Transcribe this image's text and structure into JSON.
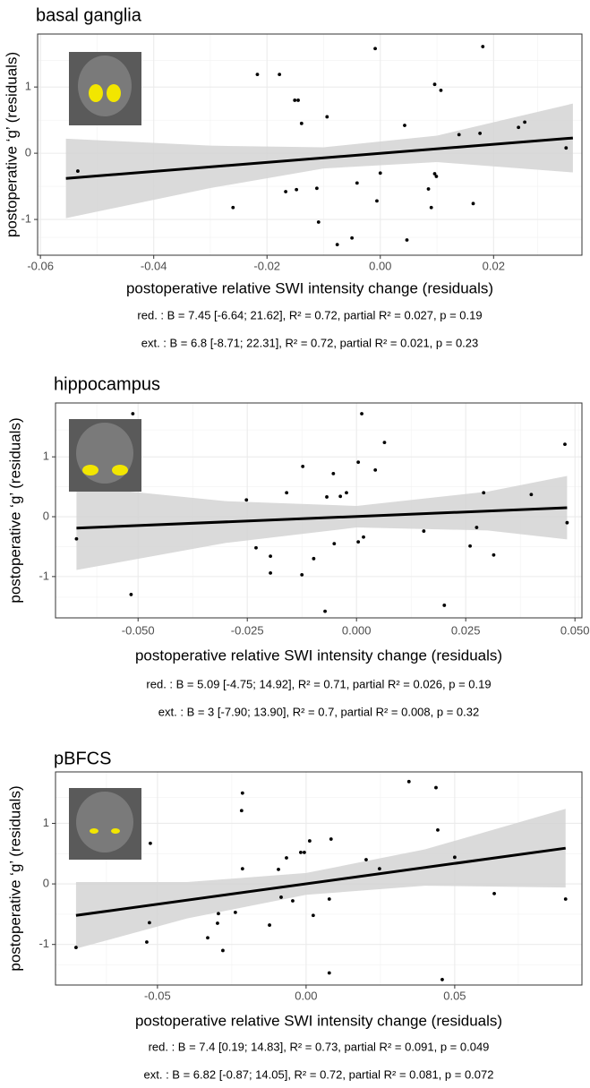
{
  "chart_data": [
    {
      "type": "scatter",
      "title": "basal ganglia",
      "x_label": "postoperative relative SWI intensity change (residuals)",
      "y_label": "postoperative ‘g’ (residuals)",
      "x": [
        -0.0534,
        -0.0217,
        -0.026,
        -0.0178,
        -0.0167,
        -0.0148,
        -0.0151,
        -0.0145,
        -0.0139,
        -0.0112,
        -0.0109,
        -0.0094,
        -0.0076,
        -0.005,
        -0.0041,
        -0.0009,
        -0.0006,
        0,
        0.0043,
        0.0047,
        0.0085,
        0.009,
        0.0096,
        0.0096,
        0.0099,
        0.0107,
        0.0139,
        0.0164,
        0.0176,
        0.0181,
        0.0244,
        0.0255,
        0.0328
      ],
      "y": [
        -0.27,
        1.19,
        -0.82,
        1.19,
        -0.58,
        -0.55,
        0.8,
        0.8,
        0.45,
        -0.53,
        -1.04,
        0.55,
        -1.38,
        -1.28,
        -0.45,
        1.58,
        -0.72,
        -0.3,
        0.42,
        -1.31,
        -0.54,
        -0.82,
        1.04,
        -0.31,
        -0.35,
        0.95,
        0.28,
        -0.76,
        0.3,
        1.61,
        0.39,
        0.47,
        0.08
      ],
      "color": "#000000",
      "fit": {
        "x": [
          -0.0555,
          0.034
        ],
        "y": [
          -0.38,
          0.23
        ],
        "color": "#000000"
      },
      "ci": {
        "x": [
          -0.0555,
          -0.03,
          -0.01,
          0.01,
          0.034
        ],
        "upper": [
          0.22,
          0.114,
          0.09,
          0.266,
          0.75
        ],
        "lower": [
          -0.98,
          -0.526,
          -0.23,
          -0.134,
          -0.29
        ],
        "color": "#d4d4d4"
      },
      "xlim": [
        -0.0605,
        0.0356
      ],
      "ylim": [
        -1.54,
        1.8
      ],
      "xticks": [
        -0.06,
        -0.04,
        -0.02,
        {
          "value": 0,
          "label": "0.00"
        },
        0.02
      ],
      "yticks": [
        -1,
        0,
        1
      ],
      "grid": true,
      "annotations": [
        "red. : B = 7.45 [-6.64; 21.62], R² = 0.72, partial R² = 0.027, p = 0.19",
        "ext. : B = 6.8 [-8.71; 22.31], R² = 0.72, partial R² = 0.021, p = 0.23"
      ]
    },
    {
      "type": "scatter",
      "title": "hippocampus",
      "x_label": "postoperative relative SWI intensity change (residuals)",
      "y_label": "postoperative ‘g’ (residuals)",
      "x": [
        -0.0641,
        -0.0512,
        -0.0516,
        -0.0252,
        -0.023,
        -0.0197,
        -0.0197,
        -0.016,
        -0.0123,
        -0.0125,
        -0.0098,
        -0.0072,
        -0.0068,
        -0.0053,
        -0.0051,
        -0.0037,
        -0.0023,
        0.0004,
        0.0004,
        0.0012,
        0.0016,
        0.0043,
        0.0064,
        0.0154,
        0.0201,
        0.026,
        0.0275,
        0.0291,
        0.0314,
        0.04,
        0.0477,
        0.0482
      ],
      "y": [
        -0.37,
        1.72,
        -1.3,
        0.28,
        -0.52,
        -0.66,
        -0.94,
        0.4,
        0.84,
        -0.97,
        -0.7,
        -1.58,
        0.33,
        0.72,
        -0.45,
        0.34,
        0.4,
        0.91,
        -0.42,
        1.72,
        -0.34,
        0.78,
        1.24,
        -0.24,
        -1.48,
        -0.49,
        -0.18,
        0.4,
        -0.64,
        0.37,
        1.21,
        -0.1
      ],
      "color": "#000000",
      "fit": {
        "x": [
          -0.0641,
          0.0482
        ],
        "y": [
          -0.19,
          0.15
        ],
        "color": "#000000"
      },
      "ci": {
        "x": [
          -0.0641,
          -0.03,
          0,
          0.03,
          0.0482
        ],
        "upper": [
          0.51,
          0.26,
          0.18,
          0.42,
          0.68
        ],
        "lower": [
          -0.89,
          -0.44,
          -0.18,
          -0.23,
          -0.38
        ],
        "color": "#d4d4d4"
      },
      "xlim": [
        -0.0689,
        0.0516
      ],
      "ylim": [
        -1.69,
        1.9
      ],
      "xticks": [
        {
          "value": -0.05,
          "label": "-0.050"
        },
        -0.025,
        {
          "value": 0,
          "label": "0.000"
        },
        0.025,
        {
          "value": 0.05,
          "label": "0.050"
        }
      ],
      "yticks": [
        -1,
        0,
        1
      ],
      "grid": true,
      "annotations": [
        "red. : B = 5.09 [-4.75; 14.92], R² = 0.71, partial R² = 0.026, p = 0.19",
        "ext. : B = 3 [-7.90; 13.90], R² = 0.7, partial R² = 0.008, p = 0.32"
      ]
    },
    {
      "type": "scatter",
      "title": "pBFCS",
      "x_label": "postoperative relative SWI intensity change (residuals)",
      "y_label": "postoperative ‘g’ (residuals)",
      "x": [
        -0.0774,
        -0.0536,
        -0.0524,
        -0.0527,
        -0.0331,
        -0.0298,
        -0.0295,
        -0.028,
        -0.0238,
        -0.0217,
        -0.0214,
        -0.0214,
        -0.0123,
        -0.0093,
        -0.0084,
        -0.0066,
        -0.0045,
        -0.0018,
        -0.0006,
        0.0012,
        0.0024,
        0.0078,
        0.0084,
        0.0078,
        0.0202,
        0.0247,
        0.0346,
        0.0437,
        0.0443,
        0.0458,
        0.05,
        0.0633,
        0.0873
      ],
      "y": [
        -1.05,
        -0.96,
        0.67,
        -0.64,
        -0.89,
        -0.65,
        -0.49,
        -1.1,
        -0.47,
        1.21,
        1.5,
        0.25,
        -0.68,
        0.24,
        -0.22,
        0.43,
        -0.28,
        0.52,
        0.52,
        0.71,
        -0.52,
        -1.47,
        0.74,
        -0.25,
        0.4,
        0.25,
        1.69,
        1.59,
        0.89,
        -1.58,
        0.44,
        -0.16,
        -0.25
      ],
      "color": "#000000",
      "fit": {
        "x": [
          -0.0774,
          0.0873
        ],
        "y": [
          -0.52,
          0.59
        ],
        "color": "#000000"
      },
      "ci": {
        "x": [
          -0.0774,
          -0.04,
          0,
          0.04,
          0.0873
        ],
        "upper": [
          0.03,
          0.03,
          0.18,
          0.57,
          1.24
        ],
        "lower": [
          -1.07,
          -0.57,
          -0.18,
          -0.03,
          -0.06
        ],
        "color": "#d4d4d4"
      },
      "xlim": [
        -0.0843,
        0.0928
      ],
      "ylim": [
        -1.67,
        1.85
      ],
      "xticks": [
        -0.05,
        {
          "value": 0,
          "label": "0.00"
        },
        0.05
      ],
      "yticks": [
        -1,
        0,
        1
      ],
      "grid": true,
      "annotations": [
        "red. : B = 7.4 [0.19; 14.83], R² = 0.73, partial R² = 0.091, p = 0.049",
        "ext. : B = 6.82 [-0.87; 14.05], R² = 0.72, partial R² = 0.081, p = 0.072"
      ]
    }
  ]
}
